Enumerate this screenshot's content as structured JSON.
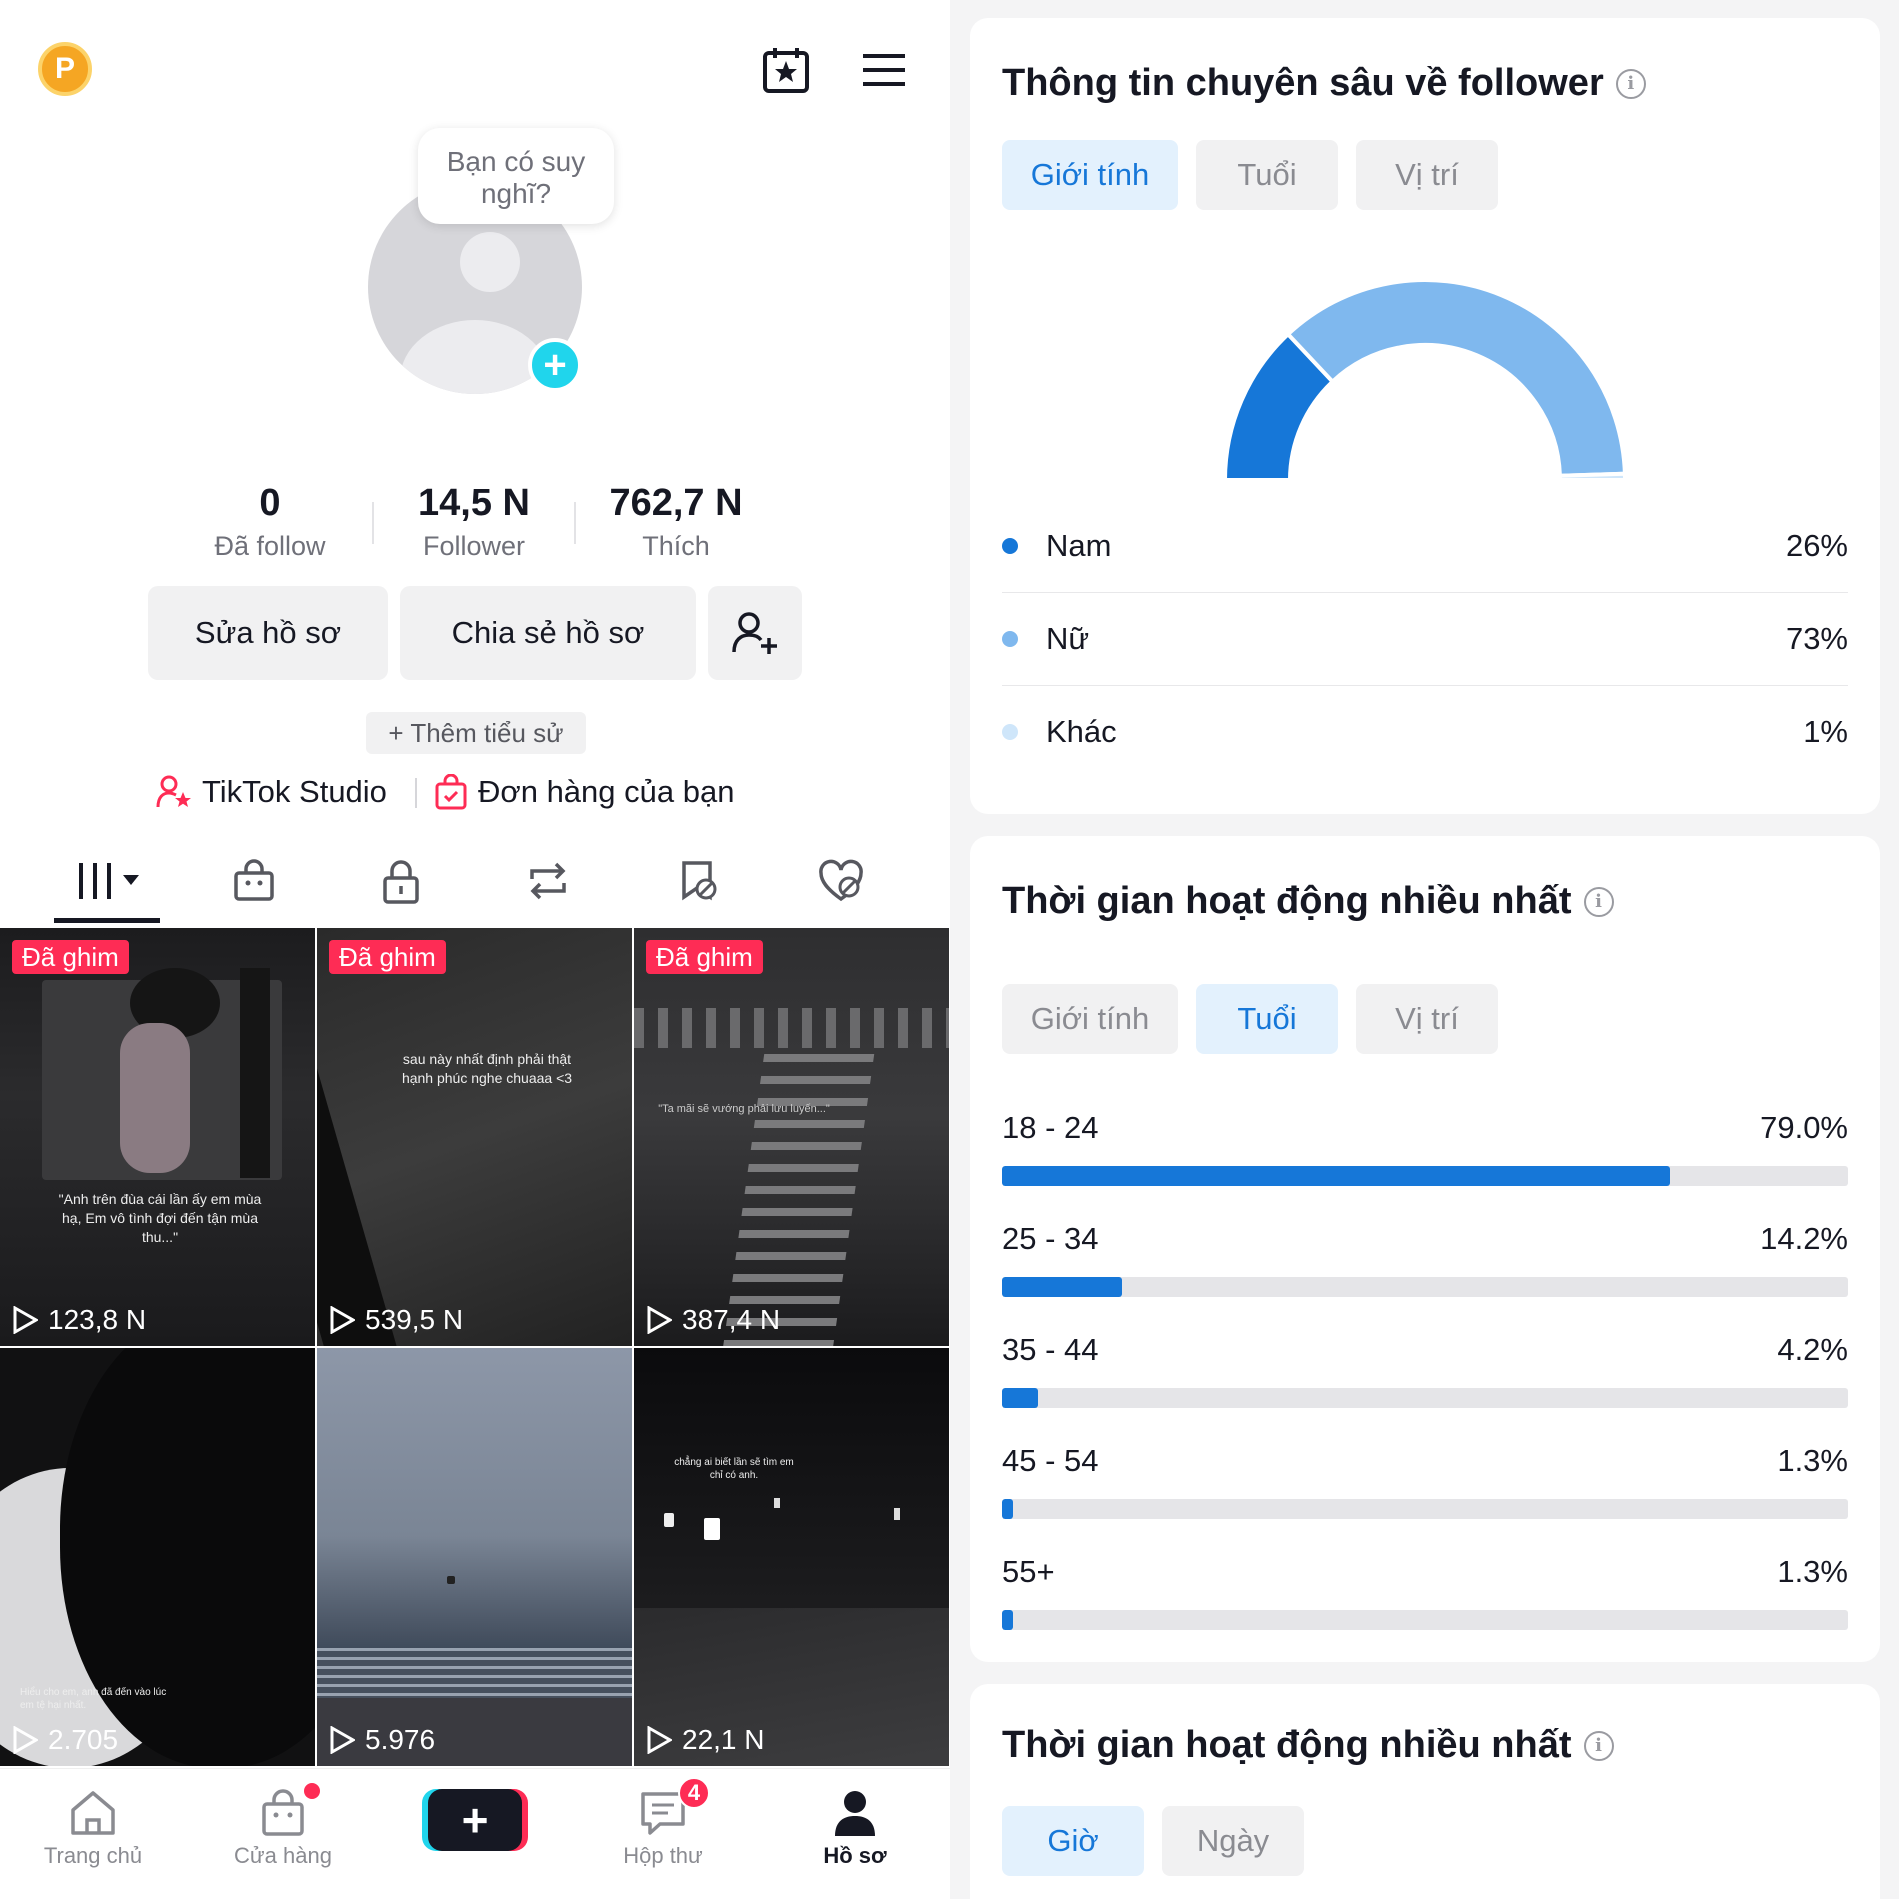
{
  "profile": {
    "badge_letter": "P",
    "bubble_text": "Bạn có suy nghĩ?",
    "stats": [
      {
        "value": "0",
        "label": "Đã follow"
      },
      {
        "value": "14,5 N",
        "label": "Follower"
      },
      {
        "value": "762,7 N",
        "label": "Thích"
      }
    ],
    "edit_profile": "Sửa hồ sơ",
    "share_profile": "Chia sẻ hồ sơ",
    "add_bio": "+ Thêm tiểu sử",
    "studio": "TikTok Studio",
    "orders": "Đơn hàng của bạn"
  },
  "videos": [
    {
      "pinned_label": "Đã ghim",
      "views": "123,8 N",
      "caption": "\"Anh trên đùa cái lần ấy em mùa hạ, Em vô tình đợi đến tận mùa thu...\""
    },
    {
      "pinned_label": "Đã ghim",
      "views": "539,5 N",
      "caption": "sau này nhất định phải thật hạnh phúc nghe chuaaa <3"
    },
    {
      "pinned_label": "Đã ghim",
      "views": "387,4 N",
      "caption": "\"Ta mãi sẽ vướng phải lưu luyến...\""
    },
    {
      "pinned_label": "",
      "views": "2.705",
      "caption": "Hiểu cho em, anh đã đến vào lúc em tệ hại nhất."
    },
    {
      "pinned_label": "",
      "views": "5.976",
      "caption": ""
    },
    {
      "pinned_label": "",
      "views": "22,1 N",
      "caption": "chẳng ai biết lần sẽ tìm em chỉ có anh."
    }
  ],
  "bottom_nav": {
    "home": "Trang chủ",
    "shop": "Cửa hàng",
    "inbox": "Hộp thư",
    "inbox_badge": "4",
    "profile": "Hồ sơ"
  },
  "insights": {
    "title": "Thông tin chuyên sâu về follower",
    "tabs": [
      "Giới tính",
      "Tuổi",
      "Vị trí"
    ],
    "active_tab": 0,
    "gender": [
      {
        "label": "Nam",
        "value": "26%",
        "percent": 26,
        "color": "#1677d8"
      },
      {
        "label": "Nữ",
        "value": "73%",
        "percent": 73,
        "color": "#7fb8ee"
      },
      {
        "label": "Khác",
        "value": "1%",
        "percent": 1,
        "color": "#cfe6fa"
      }
    ]
  },
  "activity_age": {
    "title": "Thời gian hoạt động nhiều nhất",
    "tabs": [
      "Giới tính",
      "Tuổi",
      "Vị trí"
    ],
    "active_tab": 1,
    "rows": [
      {
        "label": "18 - 24",
        "value": "79.0%",
        "percent": 79.0
      },
      {
        "label": "25 - 34",
        "value": "14.2%",
        "percent": 14.2
      },
      {
        "label": "35 - 44",
        "value": "4.2%",
        "percent": 4.2
      },
      {
        "label": "45 - 54",
        "value": "1.3%",
        "percent": 1.3
      },
      {
        "label": "55+",
        "value": "1.3%",
        "percent": 1.3
      }
    ]
  },
  "activity_time": {
    "title": "Thời gian hoạt động nhiều nhất",
    "tabs": [
      "Giờ",
      "Ngày"
    ],
    "active_tab": 0
  },
  "colors": {
    "accent_blue": "#1677d8",
    "tiktok_red": "#fe2c55",
    "tiktok_cyan": "#20d5ec"
  }
}
